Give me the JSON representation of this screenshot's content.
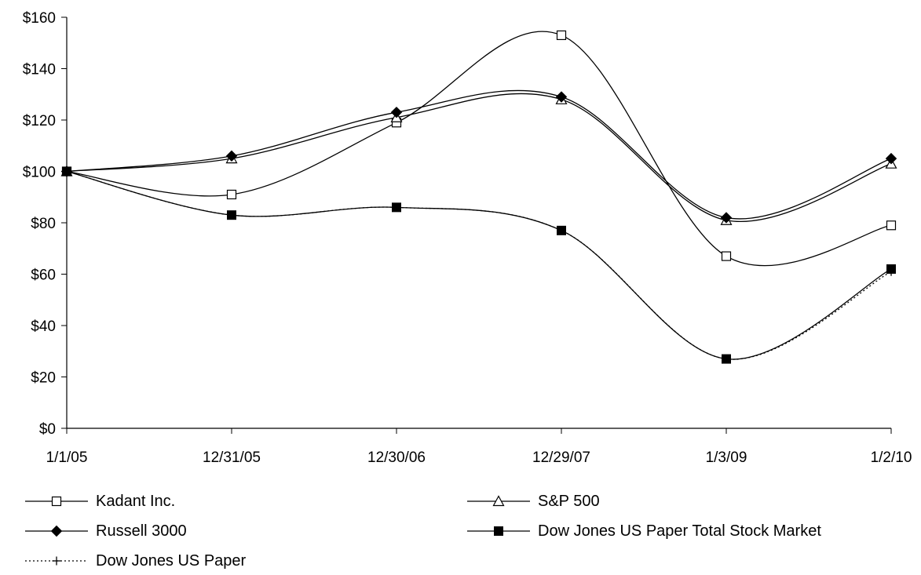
{
  "chart_data": {
    "type": "line",
    "title": "",
    "xlabel": "",
    "ylabel": "",
    "categories": [
      "1/1/05",
      "12/31/05",
      "12/30/06",
      "12/29/07",
      "1/3/09",
      "1/2/10"
    ],
    "ylim": [
      0,
      160
    ],
    "y_ticks": [
      "$0",
      "$20",
      "$40",
      "$60",
      "$80",
      "$100",
      "$120",
      "$140",
      "$160"
    ],
    "grid": false,
    "legend_position": "bottom",
    "series": [
      {
        "name": "Kadant Inc.",
        "marker": "open-square",
        "line": "solid",
        "values": [
          100,
          91,
          119,
          153,
          67,
          79
        ]
      },
      {
        "name": "S&P 500",
        "marker": "open-triangle",
        "line": "solid",
        "values": [
          100,
          105,
          121,
          128,
          81,
          103
        ]
      },
      {
        "name": "Russell 3000",
        "marker": "filled-diamond",
        "line": "solid",
        "values": [
          100,
          106,
          123,
          129,
          82,
          105
        ]
      },
      {
        "name": "Dow Jones US Paper Total Stock Market",
        "marker": "filled-square",
        "line": "solid",
        "values": [
          100,
          83,
          86,
          77,
          27,
          62
        ]
      },
      {
        "name": "Dow Jones US Paper",
        "marker": "plus",
        "line": "dotted",
        "values": [
          100,
          83,
          86,
          77,
          27,
          61
        ]
      }
    ]
  }
}
